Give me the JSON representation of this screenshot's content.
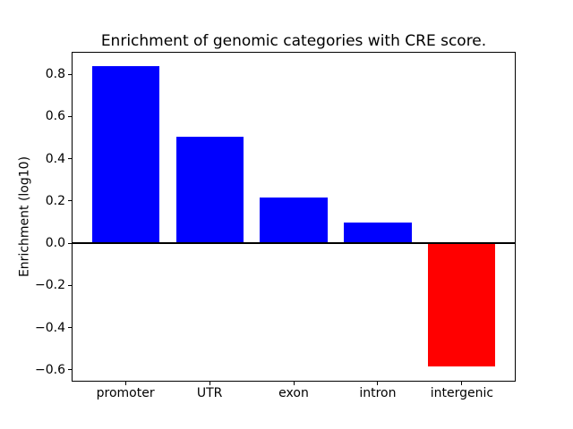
{
  "chart_data": {
    "type": "bar",
    "title": "Enrichment of genomic categories with CRE score.",
    "ylabel": "Enrichment (log10)",
    "xlabel": "",
    "categories": [
      "promoter",
      "UTR",
      "exon",
      "intron",
      "intergenic"
    ],
    "values": [
      0.84,
      0.505,
      0.215,
      0.097,
      -0.585
    ],
    "positive_color": "#0000ff",
    "negative_color": "#ff0000",
    "axis_color": "#000000",
    "background_color": "#ffffff",
    "bar_width": 0.8,
    "yticks": [
      {
        "value": 0.8,
        "label": "0.8"
      },
      {
        "value": 0.6,
        "label": "0.6"
      },
      {
        "value": 0.4,
        "label": "0.4"
      },
      {
        "value": 0.2,
        "label": "0.2"
      },
      {
        "value": 0.0,
        "label": "0.0"
      },
      {
        "value": -0.2,
        "label": "−0.2"
      },
      {
        "value": -0.4,
        "label": "−0.4"
      },
      {
        "value": -0.6,
        "label": "−0.6"
      }
    ],
    "ylim": [
      -0.656,
      0.906
    ],
    "xlim": [
      -0.64,
      4.64
    ],
    "zero_line": true,
    "grid": false,
    "legend": null
  }
}
